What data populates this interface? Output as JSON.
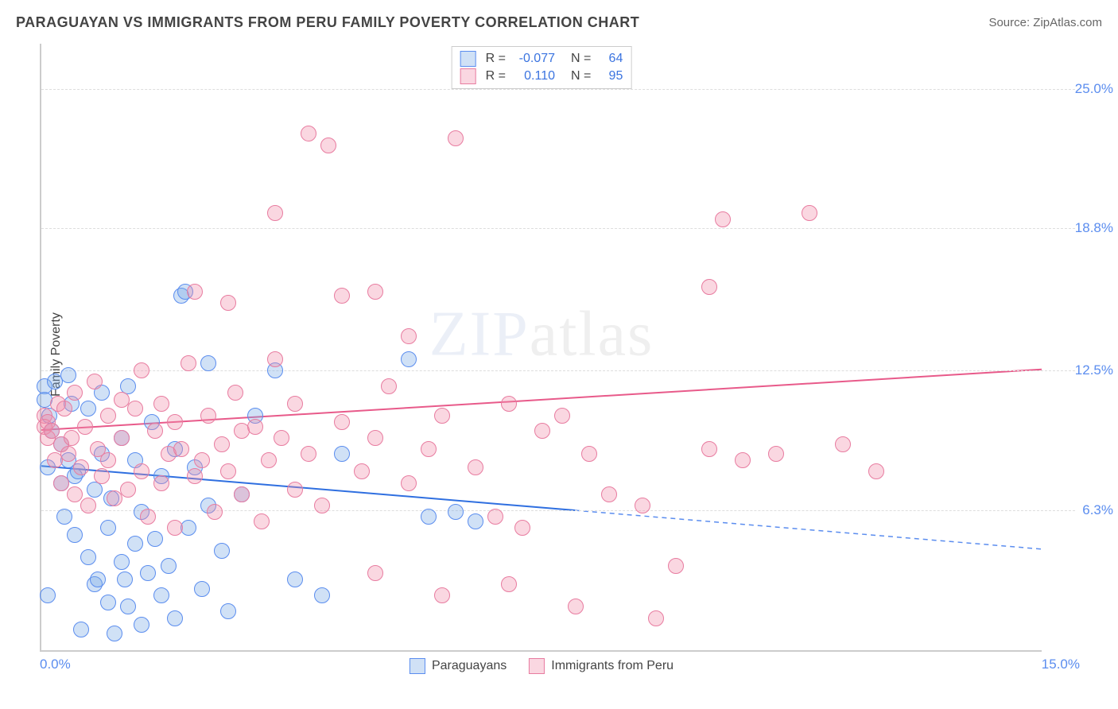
{
  "title": "PARAGUAYAN VS IMMIGRANTS FROM PERU FAMILY POVERTY CORRELATION CHART",
  "source": "Source: ZipAtlas.com",
  "y_axis_label": "Family Poverty",
  "watermark_zip": "ZIP",
  "watermark_atlas": "atlas",
  "chart": {
    "type": "scatter",
    "xlim": [
      0,
      15
    ],
    "ylim": [
      0,
      27
    ],
    "x_ticks": [
      {
        "v": 0,
        "label": "0.0%"
      },
      {
        "v": 15,
        "label": "15.0%"
      }
    ],
    "y_gridlines": [
      {
        "v": 6.3,
        "label": "6.3%"
      },
      {
        "v": 12.5,
        "label": "12.5%"
      },
      {
        "v": 18.8,
        "label": "18.8%"
      },
      {
        "v": 25.0,
        "label": "25.0%"
      }
    ],
    "background_color": "#ffffff",
    "grid_color": "#dddddd",
    "axis_color": "#cccccc",
    "tick_label_color": "#5b8def",
    "tick_label_fontsize": 17,
    "title_fontsize": 18,
    "title_color": "#444444",
    "point_radius": 10,
    "point_stroke_width": 1.5,
    "trend_line_width": 2
  },
  "series": [
    {
      "key": "paraguayans",
      "label": "Paraguayans",
      "r_value": "-0.077",
      "n_value": "64",
      "fill_color": "rgba(120, 170, 230, 0.35)",
      "stroke_color": "#5b8def",
      "trend_color": "#2f6fe0",
      "trend_color_dashed": "#5b8def",
      "trend": {
        "x0": 0,
        "y0": 8.2,
        "x1": 15,
        "y1": 4.5,
        "solid_until_x": 8.0
      },
      "points": [
        [
          0.05,
          11.8
        ],
        [
          0.05,
          11.2
        ],
        [
          0.1,
          8.2
        ],
        [
          0.1,
          2.5
        ],
        [
          0.12,
          10.5
        ],
        [
          0.15,
          9.8
        ],
        [
          0.2,
          12.0
        ],
        [
          0.3,
          7.5
        ],
        [
          0.3,
          9.2
        ],
        [
          0.35,
          6.0
        ],
        [
          0.4,
          12.3
        ],
        [
          0.4,
          8.5
        ],
        [
          0.45,
          11.0
        ],
        [
          0.5,
          7.8
        ],
        [
          0.5,
          5.2
        ],
        [
          0.55,
          8.0
        ],
        [
          0.6,
          1.0
        ],
        [
          0.7,
          10.8
        ],
        [
          0.7,
          4.2
        ],
        [
          0.8,
          7.2
        ],
        [
          0.8,
          3.0
        ],
        [
          0.85,
          3.2
        ],
        [
          0.9,
          11.5
        ],
        [
          0.9,
          8.8
        ],
        [
          1.0,
          2.2
        ],
        [
          1.0,
          5.5
        ],
        [
          1.05,
          6.8
        ],
        [
          1.1,
          0.8
        ],
        [
          1.2,
          4.0
        ],
        [
          1.2,
          9.5
        ],
        [
          1.25,
          3.2
        ],
        [
          1.3,
          11.8
        ],
        [
          1.3,
          2.0
        ],
        [
          1.4,
          8.5
        ],
        [
          1.4,
          4.8
        ],
        [
          1.5,
          6.2
        ],
        [
          1.5,
          1.2
        ],
        [
          1.6,
          3.5
        ],
        [
          1.65,
          10.2
        ],
        [
          1.7,
          5.0
        ],
        [
          1.8,
          2.5
        ],
        [
          1.8,
          7.8
        ],
        [
          1.9,
          3.8
        ],
        [
          2.0,
          1.5
        ],
        [
          2.0,
          9.0
        ],
        [
          2.1,
          15.8
        ],
        [
          2.15,
          16.0
        ],
        [
          2.2,
          5.5
        ],
        [
          2.3,
          8.2
        ],
        [
          2.4,
          2.8
        ],
        [
          2.5,
          6.5
        ],
        [
          2.5,
          12.8
        ],
        [
          2.7,
          4.5
        ],
        [
          2.8,
          1.8
        ],
        [
          3.0,
          7.0
        ],
        [
          3.2,
          10.5
        ],
        [
          3.5,
          12.5
        ],
        [
          3.8,
          3.2
        ],
        [
          4.2,
          2.5
        ],
        [
          4.5,
          8.8
        ],
        [
          5.5,
          13.0
        ],
        [
          5.8,
          6.0
        ],
        [
          6.2,
          6.2
        ],
        [
          6.5,
          5.8
        ]
      ]
    },
    {
      "key": "peru",
      "label": "Immigrants from Peru",
      "r_value": "0.110",
      "n_value": "95",
      "fill_color": "rgba(240, 140, 170, 0.35)",
      "stroke_color": "#e87ca0",
      "trend_color": "#e85a8a",
      "trend": {
        "x0": 0,
        "y0": 9.8,
        "x1": 15,
        "y1": 12.5,
        "solid_until_x": 15
      },
      "points": [
        [
          0.05,
          10.5
        ],
        [
          0.05,
          10.0
        ],
        [
          0.1,
          10.2
        ],
        [
          0.1,
          9.5
        ],
        [
          0.15,
          9.8
        ],
        [
          0.2,
          8.5
        ],
        [
          0.25,
          11.0
        ],
        [
          0.3,
          9.2
        ],
        [
          0.3,
          7.5
        ],
        [
          0.35,
          10.8
        ],
        [
          0.4,
          8.8
        ],
        [
          0.45,
          9.5
        ],
        [
          0.5,
          7.0
        ],
        [
          0.5,
          11.5
        ],
        [
          0.6,
          8.2
        ],
        [
          0.65,
          10.0
        ],
        [
          0.7,
          6.5
        ],
        [
          0.8,
          12.0
        ],
        [
          0.85,
          9.0
        ],
        [
          0.9,
          7.8
        ],
        [
          1.0,
          10.5
        ],
        [
          1.0,
          8.5
        ],
        [
          1.1,
          6.8
        ],
        [
          1.2,
          11.2
        ],
        [
          1.2,
          9.5
        ],
        [
          1.3,
          7.2
        ],
        [
          1.4,
          10.8
        ],
        [
          1.5,
          8.0
        ],
        [
          1.5,
          12.5
        ],
        [
          1.6,
          6.0
        ],
        [
          1.7,
          9.8
        ],
        [
          1.8,
          11.0
        ],
        [
          1.8,
          7.5
        ],
        [
          1.9,
          8.8
        ],
        [
          2.0,
          10.2
        ],
        [
          2.0,
          5.5
        ],
        [
          2.1,
          9.0
        ],
        [
          2.2,
          12.8
        ],
        [
          2.3,
          7.8
        ],
        [
          2.3,
          16.0
        ],
        [
          2.4,
          8.5
        ],
        [
          2.5,
          10.5
        ],
        [
          2.6,
          6.2
        ],
        [
          2.7,
          9.2
        ],
        [
          2.8,
          15.5
        ],
        [
          2.8,
          8.0
        ],
        [
          2.9,
          11.5
        ],
        [
          3.0,
          7.0
        ],
        [
          3.0,
          9.8
        ],
        [
          3.2,
          10.0
        ],
        [
          3.3,
          5.8
        ],
        [
          3.4,
          8.5
        ],
        [
          3.5,
          13.0
        ],
        [
          3.5,
          19.5
        ],
        [
          3.6,
          9.5
        ],
        [
          3.8,
          7.2
        ],
        [
          3.8,
          11.0
        ],
        [
          4.0,
          8.8
        ],
        [
          4.0,
          23.0
        ],
        [
          4.2,
          6.5
        ],
        [
          4.3,
          22.5
        ],
        [
          4.5,
          10.2
        ],
        [
          4.5,
          15.8
        ],
        [
          4.8,
          8.0
        ],
        [
          5.0,
          9.5
        ],
        [
          5.0,
          16.0
        ],
        [
          5.0,
          3.5
        ],
        [
          5.2,
          11.8
        ],
        [
          5.5,
          7.5
        ],
        [
          5.5,
          14.0
        ],
        [
          5.8,
          9.0
        ],
        [
          6.0,
          10.5
        ],
        [
          6.0,
          2.5
        ],
        [
          6.2,
          22.8
        ],
        [
          6.5,
          8.2
        ],
        [
          6.8,
          6.0
        ],
        [
          7.0,
          3.0
        ],
        [
          7.0,
          11.0
        ],
        [
          7.2,
          5.5
        ],
        [
          7.5,
          9.8
        ],
        [
          7.8,
          10.5
        ],
        [
          8.0,
          2.0
        ],
        [
          8.2,
          8.8
        ],
        [
          8.5,
          7.0
        ],
        [
          9.0,
          6.5
        ],
        [
          9.2,
          1.5
        ],
        [
          9.5,
          3.8
        ],
        [
          10.0,
          16.2
        ],
        [
          10.0,
          9.0
        ],
        [
          10.2,
          19.2
        ],
        [
          10.5,
          8.5
        ],
        [
          11.0,
          8.8
        ],
        [
          11.5,
          19.5
        ],
        [
          12.0,
          9.2
        ],
        [
          12.5,
          8.0
        ]
      ]
    }
  ],
  "legend_top": {
    "r_label": "R =",
    "n_label": "N ="
  },
  "legend_bottom_labels": [
    "Paraguayans",
    "Immigrants from Peru"
  ]
}
